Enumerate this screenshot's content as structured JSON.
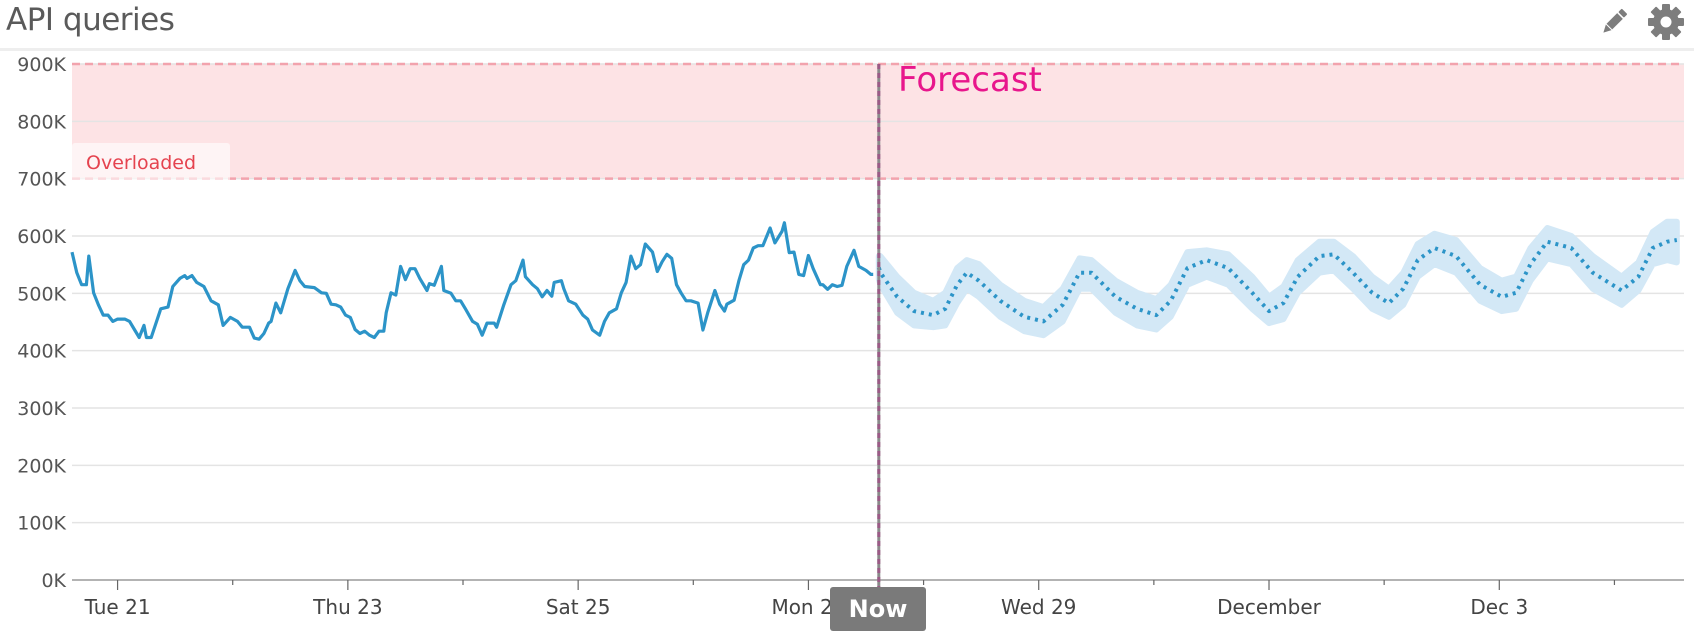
{
  "header": {
    "title": "API queries",
    "edit_icon": "pencil-icon",
    "settings_icon": "gear-icon"
  },
  "chart_data": {
    "type": "line",
    "title": "API queries",
    "colors": {
      "series": "#2c94c8",
      "band": "#d3e8f6",
      "threshold_fill": "#fde3e5",
      "threshold_line": "#f2a3ad",
      "threshold_label": "#e5434f",
      "forecast_label": "#e8168c",
      "now_line": "#9b5a86",
      "now_tag": "#7a7a7a"
    },
    "grid": true,
    "ylim": [
      0,
      900000
    ],
    "y_ticks": [
      {
        "value": 0,
        "label": "0K"
      },
      {
        "value": 100000,
        "label": "100K"
      },
      {
        "value": 200000,
        "label": "200K"
      },
      {
        "value": 300000,
        "label": "300K"
      },
      {
        "value": 400000,
        "label": "400K"
      },
      {
        "value": 500000,
        "label": "500K"
      },
      {
        "value": 600000,
        "label": "600K"
      },
      {
        "value": 700000,
        "label": "700K"
      },
      {
        "value": 800000,
        "label": "800K"
      },
      {
        "value": 900000,
        "label": "900K"
      }
    ],
    "xlim": [
      "Nov 20 14:30",
      "Dec 4 14:30"
    ],
    "x_ticks": [
      {
        "date": "Nov 21 00:00",
        "label": "Tue 21"
      },
      {
        "date": "Nov 22 00:00",
        "label": ""
      },
      {
        "date": "Nov 23 00:00",
        "label": "Thu 23"
      },
      {
        "date": "Nov 24 00:00",
        "label": ""
      },
      {
        "date": "Nov 25 00:00",
        "label": "Sat 25"
      },
      {
        "date": "Nov 26 00:00",
        "label": ""
      },
      {
        "date": "Nov 27 00:00",
        "label": "Mon 27"
      },
      {
        "date": "Nov 28 00:00",
        "label": ""
      },
      {
        "date": "Nov 29 00:00",
        "label": "Wed 29"
      },
      {
        "date": "Nov 30 00:00",
        "label": ""
      },
      {
        "date": "Dec 1 00:00",
        "label": "December"
      },
      {
        "date": "Dec 2 00:00",
        "label": ""
      },
      {
        "date": "Dec 3 00:00",
        "label": "Dec 3"
      },
      {
        "date": "Dec 4 00:00",
        "label": ""
      }
    ],
    "threshold": {
      "label": "Overloaded",
      "from": 700000,
      "to": 900000
    },
    "now": {
      "label": "Now",
      "date": "Nov 27 14:40"
    },
    "forecast_label": "Forecast",
    "series": [
      {
        "kind": "actual",
        "points": [
          [
            "Nov 20 14:30",
            572000
          ],
          [
            "Nov 20 15:30",
            536000
          ],
          [
            "Nov 20 16:30",
            515000
          ],
          [
            "Nov 20 17:30",
            515000
          ],
          [
            "Nov 20 18:00",
            565000
          ],
          [
            "Nov 20 19:00",
            501000
          ],
          [
            "Nov 20 20:00",
            480000
          ],
          [
            "Nov 20 21:00",
            462000
          ],
          [
            "Nov 20 22:00",
            462000
          ],
          [
            "Nov 20 23:00",
            451000
          ],
          [
            "Nov 21 00:00",
            455000
          ],
          [
            "Nov 21 01:30",
            455000
          ],
          [
            "Nov 21 02:30",
            451000
          ],
          [
            "Nov 21 03:30",
            437000
          ],
          [
            "Nov 21 04:30",
            423000
          ],
          [
            "Nov 21 05:30",
            444000
          ],
          [
            "Nov 21 06:00",
            423000
          ],
          [
            "Nov 21 07:00",
            423000
          ],
          [
            "Nov 21 08:00",
            448000
          ],
          [
            "Nov 21 09:00",
            473000
          ],
          [
            "Nov 21 10:30",
            476000
          ],
          [
            "Nov 21 11:30",
            512000
          ],
          [
            "Nov 21 13:00",
            526000
          ],
          [
            "Nov 21 14:00",
            531000
          ],
          [
            "Nov 21 14:30",
            526000
          ],
          [
            "Nov 21 15:30",
            531000
          ],
          [
            "Nov 21 16:30",
            519000
          ],
          [
            "Nov 21 18:00",
            512000
          ],
          [
            "Nov 21 19:30",
            487000
          ],
          [
            "Nov 21 21:00",
            480000
          ],
          [
            "Nov 21 22:00",
            444000
          ],
          [
            "Nov 21 23:30",
            458000
          ],
          [
            "Nov 22 01:00",
            451000
          ],
          [
            "Nov 22 02:00",
            441000
          ],
          [
            "Nov 22 03:30",
            441000
          ],
          [
            "Nov 22 04:30",
            422000
          ],
          [
            "Nov 22 05:30",
            420000
          ],
          [
            "Nov 22 06:30",
            430000
          ],
          [
            "Nov 22 07:30",
            448000
          ],
          [
            "Nov 22 08:00",
            451000
          ],
          [
            "Nov 22 09:00",
            483000
          ],
          [
            "Nov 22 10:00",
            466000
          ],
          [
            "Nov 22 11:30",
            508000
          ],
          [
            "Nov 22 13:00",
            540000
          ],
          [
            "Nov 22 14:00",
            522000
          ],
          [
            "Nov 22 15:00",
            512000
          ],
          [
            "Nov 22 17:00",
            510000
          ],
          [
            "Nov 22 18:30",
            501000
          ],
          [
            "Nov 22 19:30",
            500000
          ],
          [
            "Nov 22 20:30",
            481000
          ],
          [
            "Nov 22 21:30",
            480000
          ],
          [
            "Nov 22 22:30",
            476000
          ],
          [
            "Nov 22 23:30",
            462000
          ],
          [
            "Nov 23 00:30",
            458000
          ],
          [
            "Nov 23 01:30",
            437000
          ],
          [
            "Nov 23 02:30",
            430000
          ],
          [
            "Nov 23 03:30",
            434000
          ],
          [
            "Nov 23 04:30",
            427000
          ],
          [
            "Nov 23 05:30",
            423000
          ],
          [
            "Nov 23 06:30",
            434000
          ],
          [
            "Nov 23 07:30",
            434000
          ],
          [
            "Nov 23 08:00",
            466000
          ],
          [
            "Nov 23 09:00",
            501000
          ],
          [
            "Nov 23 10:00",
            497000
          ],
          [
            "Nov 23 11:00",
            547000
          ],
          [
            "Nov 23 12:00",
            524000
          ],
          [
            "Nov 23 13:00",
            543000
          ],
          [
            "Nov 23 14:00",
            543000
          ],
          [
            "Nov 23 15:00",
            526000
          ],
          [
            "Nov 23 16:30",
            505000
          ],
          [
            "Nov 23 17:00",
            517000
          ],
          [
            "Nov 23 18:00",
            514000
          ],
          [
            "Nov 23 19:30",
            547000
          ],
          [
            "Nov 23 20:00",
            505000
          ],
          [
            "Nov 23 21:30",
            500000
          ],
          [
            "Nov 23 22:30",
            487000
          ],
          [
            "Nov 23 23:30",
            487000
          ],
          [
            "Nov 24 00:30",
            473000
          ],
          [
            "Nov 24 02:00",
            451000
          ],
          [
            "Nov 24 03:00",
            446000
          ],
          [
            "Nov 24 04:00",
            427000
          ],
          [
            "Nov 24 05:00",
            448000
          ],
          [
            "Nov 24 06:30",
            448000
          ],
          [
            "Nov 24 07:00",
            441000
          ],
          [
            "Nov 24 08:30",
            480000
          ],
          [
            "Nov 24 10:00",
            515000
          ],
          [
            "Nov 24 11:00",
            522000
          ],
          [
            "Nov 24 12:30",
            558000
          ],
          [
            "Nov 24 13:00",
            529000
          ],
          [
            "Nov 24 14:30",
            515000
          ],
          [
            "Nov 24 15:30",
            508000
          ],
          [
            "Nov 24 16:30",
            494000
          ],
          [
            "Nov 24 17:30",
            505000
          ],
          [
            "Nov 24 18:30",
            495000
          ],
          [
            "Nov 24 19:00",
            519000
          ],
          [
            "Nov 24 20:30",
            522000
          ],
          [
            "Nov 24 21:00",
            508000
          ],
          [
            "Nov 24 22:00",
            487000
          ],
          [
            "Nov 24 23:30",
            481000
          ],
          [
            "Nov 25 01:00",
            462000
          ],
          [
            "Nov 25 02:00",
            455000
          ],
          [
            "Nov 25 03:00",
            436000
          ],
          [
            "Nov 25 04:30",
            427000
          ],
          [
            "Nov 25 05:30",
            451000
          ],
          [
            "Nov 25 06:30",
            466000
          ],
          [
            "Nov 25 08:00",
            473000
          ],
          [
            "Nov 25 09:00",
            501000
          ],
          [
            "Nov 25 10:00",
            519000
          ],
          [
            "Nov 25 11:00",
            565000
          ],
          [
            "Nov 25 12:00",
            543000
          ],
          [
            "Nov 25 13:00",
            550000
          ],
          [
            "Nov 25 14:00",
            586000
          ],
          [
            "Nov 25 15:30",
            572000
          ],
          [
            "Nov 25 16:30",
            538000
          ],
          [
            "Nov 25 17:30",
            555000
          ],
          [
            "Nov 25 18:30",
            568000
          ],
          [
            "Nov 25 19:30",
            561000
          ],
          [
            "Nov 25 20:30",
            515000
          ],
          [
            "Nov 25 21:30",
            500000
          ],
          [
            "Nov 25 22:30",
            487000
          ],
          [
            "Nov 25 23:30",
            487000
          ],
          [
            "Nov 26 01:00",
            483000
          ],
          [
            "Nov 26 02:00",
            436000
          ],
          [
            "Nov 26 03:00",
            466000
          ],
          [
            "Nov 26 04:30",
            505000
          ],
          [
            "Nov 26 05:30",
            481000
          ],
          [
            "Nov 26 06:30",
            469000
          ],
          [
            "Nov 26 07:00",
            481000
          ],
          [
            "Nov 26 08:30",
            488000
          ],
          [
            "Nov 26 09:30",
            522000
          ],
          [
            "Nov 26 10:30",
            550000
          ],
          [
            "Nov 26 11:30",
            558000
          ],
          [
            "Nov 26 12:30",
            579000
          ],
          [
            "Nov 26 13:30",
            583000
          ],
          [
            "Nov 26 14:30",
            583000
          ],
          [
            "Nov 26 16:00",
            614000
          ],
          [
            "Nov 26 17:00",
            588000
          ],
          [
            "Nov 26 18:30",
            608000
          ],
          [
            "Nov 26 19:00",
            623000
          ],
          [
            "Nov 26 20:00",
            571000
          ],
          [
            "Nov 26 21:00",
            572000
          ],
          [
            "Nov 26 22:00",
            533000
          ],
          [
            "Nov 26 23:00",
            531000
          ],
          [
            "Nov 27 00:00",
            566000
          ],
          [
            "Nov 27 01:00",
            543000
          ],
          [
            "Nov 27 02:30",
            515000
          ],
          [
            "Nov 27 03:00",
            515000
          ],
          [
            "Nov 27 04:00",
            507000
          ],
          [
            "Nov 27 05:00",
            515000
          ],
          [
            "Nov 27 06:00",
            512000
          ],
          [
            "Nov 27 07:00",
            514000
          ],
          [
            "Nov 27 08:00",
            547000
          ],
          [
            "Nov 27 09:30",
            575000
          ],
          [
            "Nov 27 10:30",
            547000
          ],
          [
            "Nov 27 12:00",
            540000
          ],
          [
            "Nov 27 13:00",
            533000
          ],
          [
            "Nov 27 13:30",
            533000
          ]
        ]
      },
      {
        "kind": "forecast",
        "points": [
          [
            "Nov 27 14:40",
            545000,
            565000,
            525000
          ],
          [
            "Nov 27 15:00",
            536000,
            565000,
            515000
          ],
          [
            "Nov 27 18:30",
            494000,
            529000,
            466000
          ],
          [
            "Nov 27 22:00",
            469000,
            501000,
            444000
          ],
          [
            "Nov 28 02:00",
            462000,
            487000,
            441000
          ],
          [
            "Nov 28 04:30",
            473000,
            501000,
            444000
          ],
          [
            "Nov 28 07:00",
            515000,
            544000,
            483000
          ],
          [
            "Nov 28 09:00",
            536000,
            558000,
            508000
          ],
          [
            "Nov 28 11:30",
            522000,
            551000,
            494000
          ],
          [
            "Nov 28 16:00",
            487000,
            515000,
            459000
          ],
          [
            "Nov 28 21:00",
            459000,
            487000,
            434000
          ],
          [
            "Nov 29 01:00",
            451000,
            476000,
            427000
          ],
          [
            "Nov 29 05:00",
            480000,
            508000,
            451000
          ],
          [
            "Nov 29 08:30",
            536000,
            561000,
            508000
          ],
          [
            "Nov 29 11:00",
            536000,
            558000,
            508000
          ],
          [
            "Nov 29 16:00",
            494000,
            522000,
            466000
          ],
          [
            "Nov 29 20:30",
            473000,
            501000,
            444000
          ],
          [
            "Nov 30 00:30",
            462000,
            490000,
            437000
          ],
          [
            "Nov 30 03:30",
            487000,
            515000,
            459000
          ],
          [
            "Nov 30 07:00",
            544000,
            572000,
            515000
          ],
          [
            "Nov 30 11:00",
            558000,
            575000,
            529000
          ],
          [
            "Nov 30 15:30",
            544000,
            568000,
            515000
          ],
          [
            "Nov 30 20:30",
            501000,
            529000,
            473000
          ],
          [
            "Dec 1 00:00",
            469000,
            494000,
            448000
          ],
          [
            "Dec 1 03:00",
            483000,
            512000,
            455000
          ],
          [
            "Dec 1 06:00",
            529000,
            558000,
            501000
          ],
          [
            "Dec 1 10:30",
            565000,
            590000,
            536000
          ],
          [
            "Dec 1 13:30",
            568000,
            590000,
            540000
          ],
          [
            "Dec 1 17:30",
            536000,
            565000,
            508000
          ],
          [
            "Dec 1 21:30",
            501000,
            529000,
            473000
          ],
          [
            "Dec 2 01:00",
            483000,
            508000,
            459000
          ],
          [
            "Dec 2 04:00",
            508000,
            536000,
            480000
          ],
          [
            "Dec 2 07:00",
            558000,
            586000,
            529000
          ],
          [
            "Dec 2 10:30",
            579000,
            604000,
            551000
          ],
          [
            "Dec 2 15:00",
            565000,
            593000,
            536000
          ],
          [
            "Dec 2 20:00",
            515000,
            544000,
            487000
          ],
          [
            "Dec 3 00:30",
            494000,
            522000,
            469000
          ],
          [
            "Dec 3 03:30",
            501000,
            529000,
            473000
          ],
          [
            "Dec 3 06:30",
            551000,
            579000,
            522000
          ],
          [
            "Dec 3 10:00",
            590000,
            614000,
            561000
          ],
          [
            "Dec 3 15:00",
            579000,
            600000,
            551000
          ],
          [
            "Dec 3 19:30",
            536000,
            565000,
            508000
          ],
          [
            "Dec 4 01:30",
            505000,
            529000,
            480000
          ],
          [
            "Dec 4 05:00",
            529000,
            554000,
            505000
          ],
          [
            "Dec 4 08:00",
            579000,
            607000,
            551000
          ],
          [
            "Dec 4 11:00",
            590000,
            625000,
            558000
          ],
          [
            "Dec 4 13:00",
            593000,
            625000,
            554000
          ]
        ]
      }
    ]
  }
}
